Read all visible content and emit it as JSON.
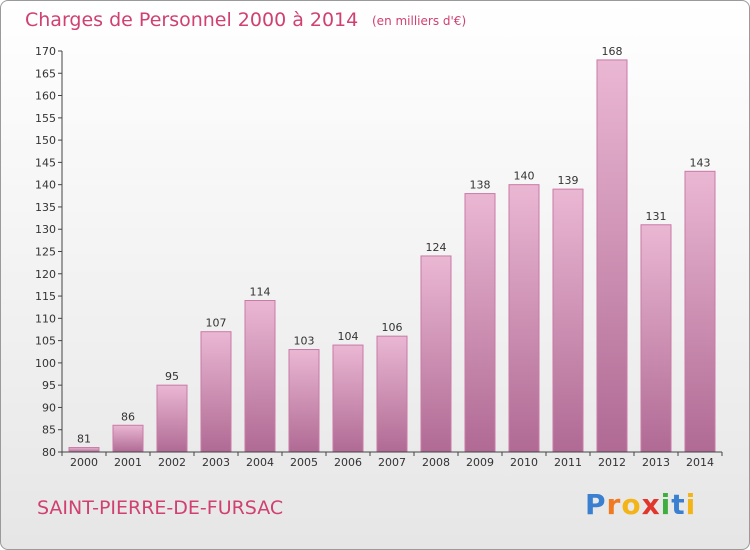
{
  "title": "Charges de Personnel 2000 à 2014",
  "subtitle": "(en milliers d'€)",
  "town": "SAINT-PIERRE-DE-FURSAC",
  "brand": {
    "letters": [
      "P",
      "r",
      "o",
      "x",
      "i",
      "t",
      "i"
    ],
    "colors": [
      "#3a7fd0",
      "#f07a22",
      "#f2b418",
      "#e0362b",
      "#3fae3f",
      "#3a7fd0",
      "#f2b418"
    ]
  },
  "colors": {
    "bar": "#d88ab6",
    "bar_light": "#eab7d3",
    "bar_dark": "#b06a94",
    "text_accent": "#d04070"
  },
  "chart_data": {
    "type": "bar",
    "categories": [
      "2000",
      "2001",
      "2002",
      "2003",
      "2004",
      "2005",
      "2006",
      "2007",
      "2008",
      "2009",
      "2010",
      "2011",
      "2012",
      "2013",
      "2014"
    ],
    "values": [
      81,
      86,
      95,
      107,
      114,
      103,
      104,
      106,
      124,
      138,
      140,
      139,
      168,
      131,
      143
    ],
    "title": "Charges de Personnel 2000 à 2014",
    "subtitle": "(en milliers d'€)",
    "xlabel": "",
    "ylabel": "",
    "ylim": [
      80,
      170
    ],
    "yticks": [
      80,
      85,
      90,
      95,
      100,
      105,
      110,
      115,
      120,
      125,
      130,
      135,
      140,
      145,
      150,
      155,
      160,
      165,
      170
    ],
    "grid": false,
    "legend": "none"
  }
}
